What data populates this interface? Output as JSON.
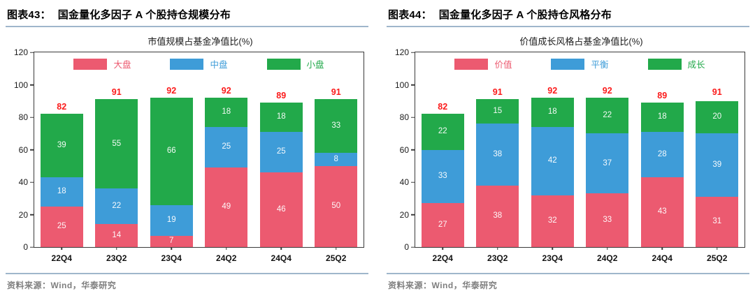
{
  "figures": [
    {
      "label": "图表43：",
      "title": "国金量化多因子 A 个股持仓规模分布",
      "source": "资料来源：Wind，华泰研究"
    },
    {
      "label": "图表44：",
      "title": "国金量化多因子 A 个股持仓风格分布",
      "source": "资料来源：Wind，华泰研究"
    }
  ],
  "chart_data": [
    {
      "type": "bar",
      "stacked": true,
      "title": "市值规模占基金净值比(%)",
      "categories": [
        "22Q4",
        "23Q2",
        "23Q4",
        "24Q2",
        "24Q4",
        "25Q2"
      ],
      "series": [
        {
          "name": "大盘",
          "color": "#EC5A70",
          "values": [
            25,
            14,
            7,
            49,
            46,
            50
          ]
        },
        {
          "name": "中盘",
          "color": "#3E9CD8",
          "values": [
            18,
            22,
            19,
            25,
            25,
            8
          ]
        },
        {
          "name": "小盘",
          "color": "#22A94A",
          "values": [
            39,
            55,
            66,
            18,
            18,
            33
          ]
        }
      ],
      "totals": [
        82,
        91,
        92,
        92,
        89,
        91
      ],
      "ylim": [
        0,
        120
      ],
      "yticks": [
        0,
        20,
        40,
        60,
        80,
        100,
        120
      ],
      "legend_position": "top-inside",
      "grid": false,
      "total_label_color": "#FB1A1A",
      "value_label_color": "#FFFFFF"
    },
    {
      "type": "bar",
      "stacked": true,
      "title": "价值成长风格占基金净值比(%)",
      "categories": [
        "22Q4",
        "23Q2",
        "23Q4",
        "24Q2",
        "24Q4",
        "25Q2"
      ],
      "series": [
        {
          "name": "价值",
          "color": "#EC5A70",
          "values": [
            27,
            38,
            32,
            33,
            43,
            31
          ]
        },
        {
          "name": "平衡",
          "color": "#3E9CD8",
          "values": [
            33,
            38,
            42,
            37,
            28,
            39
          ]
        },
        {
          "name": "成长",
          "color": "#22A94A",
          "values": [
            22,
            15,
            18,
            22,
            18,
            20
          ]
        }
      ],
      "totals": [
        82,
        91,
        92,
        92,
        89,
        91
      ],
      "ylim": [
        0,
        120
      ],
      "yticks": [
        0,
        20,
        40,
        60,
        80,
        100,
        120
      ],
      "legend_position": "top-inside",
      "grid": false,
      "total_label_color": "#FB1A1A",
      "value_label_color": "#FFFFFF"
    }
  ]
}
